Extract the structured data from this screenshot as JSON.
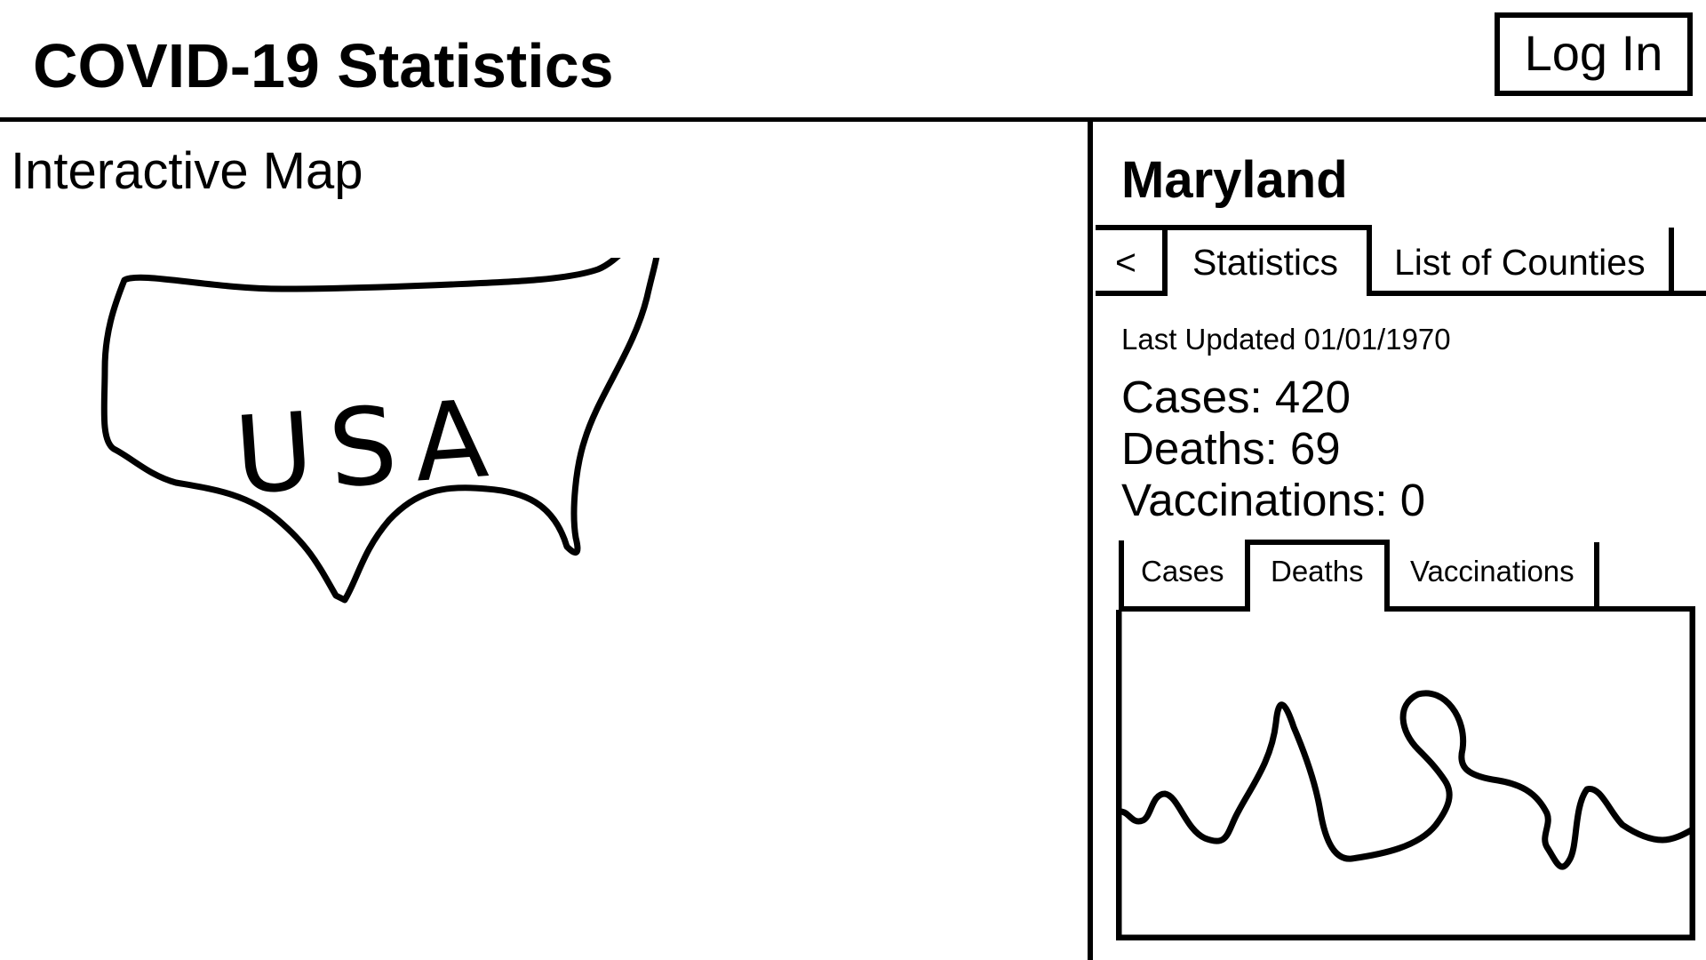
{
  "header": {
    "title": "COVID-19 Statistics",
    "login_label": "Log In"
  },
  "map": {
    "heading": "Interactive Map",
    "region_label": "USA"
  },
  "details": {
    "region_name": "Maryland",
    "tabs": [
      {
        "label": "<",
        "active": false
      },
      {
        "label": "Statistics",
        "active": true
      },
      {
        "label": "List of Counties",
        "active": false
      }
    ],
    "last_updated": "Last Updated 01/01/1970",
    "stats": {
      "cases": "Cases: 420",
      "deaths": "Deaths: 69",
      "vaccinations": "Vaccinations: 0"
    },
    "chart_tabs": [
      {
        "label": "Cases",
        "active": false
      },
      {
        "label": "Deaths",
        "active": true
      },
      {
        "label": "Vaccinations",
        "active": false
      }
    ]
  },
  "colors": {
    "ink": "#000000",
    "background": "#ffffff"
  }
}
